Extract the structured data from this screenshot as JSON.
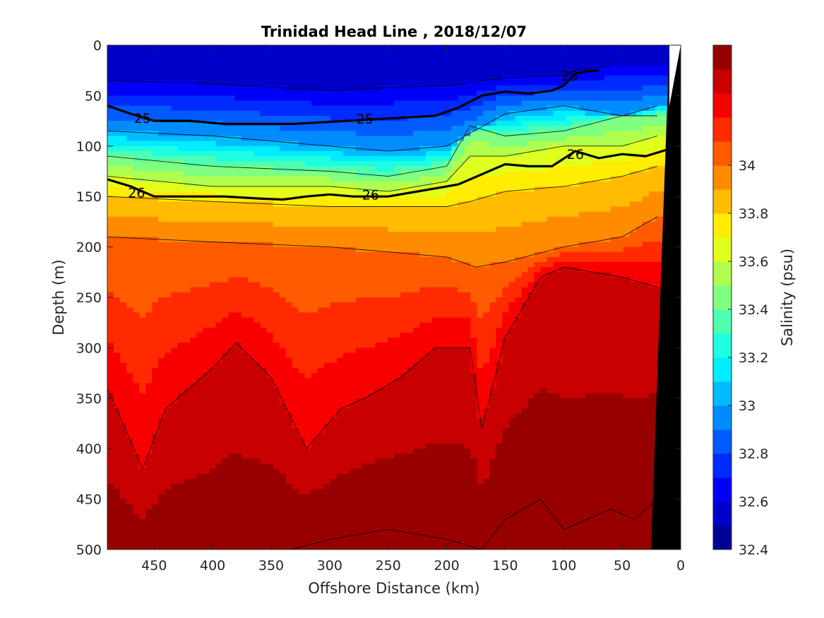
{
  "chart_data": {
    "type": "heatmap",
    "subtype": "filled-contour section",
    "title": "Trinidad Head Line , 2018/12/07",
    "xlabel": "Offshore Distance (km)",
    "ylabel": "Depth (m)",
    "xlim": [
      490,
      0
    ],
    "xticks": [
      "450",
      "400",
      "350",
      "300",
      "250",
      "200",
      "150",
      "100",
      "50",
      "0"
    ],
    "ylim": [
      0,
      500
    ],
    "yticks": [
      "0",
      "50",
      "100",
      "150",
      "200",
      "250",
      "300",
      "350",
      "400",
      "450",
      "500"
    ],
    "colorbar": {
      "label": "Salinity (psu)",
      "range": [
        32.4,
        34.5
      ],
      "step": 0.1,
      "ticks": [
        "32.4",
        "32.6",
        "32.8",
        "33",
        "33.2",
        "33.4",
        "33.6",
        "33.8",
        "34"
      ],
      "colormap": "jet"
    },
    "density_contours": [
      {
        "label": "25",
        "bold": true,
        "x": [
          490,
          470,
          450,
          420,
          390,
          360,
          330,
          300,
          270,
          240,
          210,
          190,
          170,
          150,
          130,
          110,
          100,
          90,
          80,
          70
        ],
        "depth": [
          60,
          68,
          75,
          75,
          78,
          78,
          78,
          76,
          74,
          72,
          70,
          62,
          50,
          46,
          48,
          45,
          40,
          28,
          26,
          25
        ]
      },
      {
        "label": "26",
        "bold": true,
        "x": [
          490,
          470,
          450,
          420,
          390,
          360,
          340,
          320,
          300,
          280,
          250,
          230,
          210,
          190,
          170,
          150,
          130,
          110,
          90,
          70,
          50,
          30,
          10
        ],
        "depth": [
          133,
          140,
          150,
          150,
          150,
          152,
          153,
          150,
          148,
          150,
          150,
          146,
          142,
          138,
          128,
          118,
          120,
          120,
          105,
          112,
          108,
          110,
          103
        ]
      }
    ],
    "contour_labels": [
      "25",
      "25",
      "25",
      "26",
      "26",
      "26"
    ],
    "salinity_layers": [
      {
        "value": 32.6,
        "x": [
          490,
          400,
          300,
          250,
          200,
          150,
          100,
          90,
          60
        ],
        "depth": [
          35,
          38,
          45,
          42,
          40,
          32,
          30,
          25,
          20
        ]
      },
      {
        "value": 33.0,
        "x": [
          490,
          400,
          300,
          250,
          200,
          150,
          100,
          50,
          20
        ],
        "depth": [
          85,
          90,
          100,
          105,
          100,
          68,
          60,
          70,
          60
        ]
      },
      {
        "value": 33.4,
        "x": [
          490,
          400,
          300,
          250,
          200,
          180,
          150,
          100,
          50,
          20
        ],
        "depth": [
          110,
          120,
          125,
          130,
          120,
          80,
          90,
          85,
          70,
          70
        ]
      },
      {
        "value": 33.6,
        "x": [
          490,
          400,
          300,
          250,
          200,
          180,
          150,
          100,
          50,
          20
        ],
        "depth": [
          130,
          140,
          140,
          145,
          135,
          110,
          110,
          100,
          100,
          90
        ]
      },
      {
        "value": 33.8,
        "x": [
          490,
          400,
          300,
          250,
          200,
          180,
          150,
          100,
          50,
          20
        ],
        "depth": [
          150,
          155,
          160,
          160,
          160,
          155,
          145,
          140,
          130,
          120
        ]
      },
      {
        "value": 34.0,
        "x": [
          490,
          400,
          300,
          250,
          200,
          175,
          150,
          100,
          50,
          20
        ],
        "depth": [
          190,
          195,
          200,
          205,
          210,
          220,
          215,
          200,
          190,
          170
        ]
      },
      {
        "value": 34.3,
        "x": [
          490,
          460,
          440,
          400,
          380,
          350,
          320,
          290,
          270,
          240,
          210,
          180,
          170,
          150,
          120,
          100,
          50,
          20
        ],
        "depth": [
          340,
          420,
          360,
          320,
          295,
          330,
          400,
          360,
          350,
          330,
          300,
          300,
          380,
          290,
          230,
          220,
          230,
          240
        ]
      },
      {
        "value": 34.5,
        "x": [
          490,
          400,
          300,
          250,
          200,
          170,
          150,
          120,
          100,
          60,
          40,
          20
        ],
        "depth": [
          520,
          520,
          490,
          480,
          490,
          500,
          470,
          450,
          480,
          460,
          470,
          450
        ]
      }
    ]
  }
}
